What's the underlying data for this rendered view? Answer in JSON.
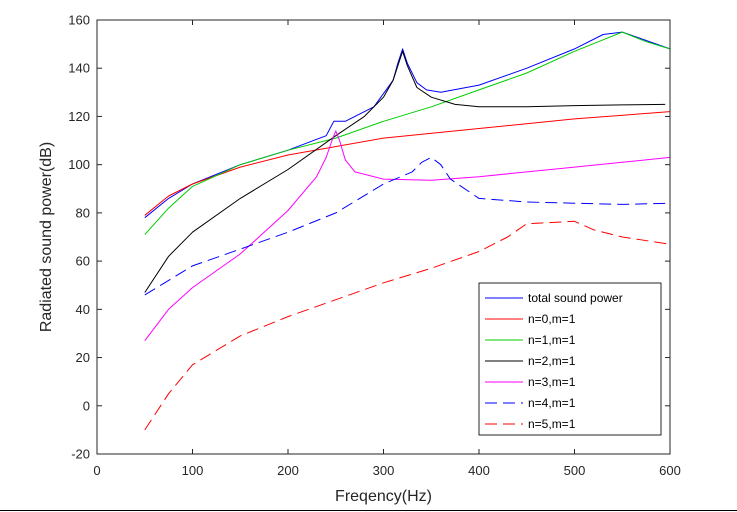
{
  "chart_data": {
    "type": "line",
    "xlabel": "Freqency(Hz)",
    "ylabel": "Radiated sound power(dB)",
    "xlim": [
      0,
      600
    ],
    "ylim": [
      -20,
      160
    ],
    "xticks": [
      "0",
      "100",
      "200",
      "300",
      "400",
      "500",
      "600"
    ],
    "yticks": [
      "-20",
      "0",
      "20",
      "40",
      "60",
      "80",
      "100",
      "120",
      "140",
      "160"
    ],
    "grid": false,
    "legend_position": "bottom-right",
    "series": [
      {
        "name": "total sound power",
        "color": "#0000ff",
        "dash": "solid",
        "points": [
          [
            50,
            78
          ],
          [
            75,
            86
          ],
          [
            100,
            92
          ],
          [
            150,
            100
          ],
          [
            200,
            106
          ],
          [
            240,
            112
          ],
          [
            248,
            118
          ],
          [
            260,
            118
          ],
          [
            290,
            124
          ],
          [
            310,
            135
          ],
          [
            315,
            142
          ],
          [
            320,
            148
          ],
          [
            325,
            142
          ],
          [
            335,
            134
          ],
          [
            345,
            131
          ],
          [
            360,
            130
          ],
          [
            400,
            133
          ],
          [
            450,
            140
          ],
          [
            500,
            148
          ],
          [
            530,
            154
          ],
          [
            550,
            155
          ],
          [
            600,
            148
          ]
        ]
      },
      {
        "name": "n=0,m=1",
        "color": "#ff0000",
        "dash": "solid",
        "points": [
          [
            50,
            79
          ],
          [
            75,
            87
          ],
          [
            100,
            92
          ],
          [
            150,
            99
          ],
          [
            200,
            104
          ],
          [
            300,
            111
          ],
          [
            400,
            115
          ],
          [
            500,
            119
          ],
          [
            600,
            122
          ]
        ]
      },
      {
        "name": "n=1,m=1",
        "color": "#00cc00",
        "dash": "solid",
        "points": [
          [
            50,
            71
          ],
          [
            75,
            82
          ],
          [
            100,
            91
          ],
          [
            150,
            100
          ],
          [
            200,
            106
          ],
          [
            250,
            111
          ],
          [
            300,
            118
          ],
          [
            350,
            124
          ],
          [
            400,
            131
          ],
          [
            450,
            138
          ],
          [
            500,
            147
          ],
          [
            525,
            151
          ],
          [
            550,
            155
          ],
          [
            575,
            151
          ],
          [
            600,
            148
          ]
        ]
      },
      {
        "name": "n=2,m=1",
        "color": "#000000",
        "dash": "solid",
        "points": [
          [
            50,
            47
          ],
          [
            75,
            62
          ],
          [
            100,
            72
          ],
          [
            150,
            86
          ],
          [
            200,
            98
          ],
          [
            250,
            112
          ],
          [
            280,
            120
          ],
          [
            300,
            128
          ],
          [
            310,
            135
          ],
          [
            315,
            141
          ],
          [
            320,
            147
          ],
          [
            325,
            141
          ],
          [
            335,
            132
          ],
          [
            350,
            128
          ],
          [
            375,
            125
          ],
          [
            400,
            124
          ],
          [
            450,
            124
          ],
          [
            500,
            124.5
          ],
          [
            550,
            124.8
          ],
          [
            595,
            125
          ]
        ]
      },
      {
        "name": "n=3,m=1",
        "color": "#ff00ff",
        "dash": "solid",
        "points": [
          [
            50,
            27
          ],
          [
            75,
            40
          ],
          [
            100,
            49
          ],
          [
            150,
            63
          ],
          [
            200,
            81
          ],
          [
            230,
            95
          ],
          [
            240,
            103
          ],
          [
            246,
            110
          ],
          [
            250,
            114
          ],
          [
            254,
            110
          ],
          [
            260,
            102
          ],
          [
            270,
            97
          ],
          [
            300,
            94
          ],
          [
            350,
            93.5
          ],
          [
            400,
            95
          ],
          [
            450,
            97
          ],
          [
            500,
            99
          ],
          [
            550,
            101
          ],
          [
            600,
            103
          ]
        ]
      },
      {
        "name": "n=4,m=1",
        "color": "#0000ff",
        "dash": "dashed",
        "points": [
          [
            50,
            46
          ],
          [
            75,
            52
          ],
          [
            100,
            58
          ],
          [
            150,
            65
          ],
          [
            200,
            72
          ],
          [
            250,
            80
          ],
          [
            300,
            92
          ],
          [
            330,
            97
          ],
          [
            340,
            101
          ],
          [
            350,
            103
          ],
          [
            360,
            100
          ],
          [
            370,
            94
          ],
          [
            400,
            86
          ],
          [
            450,
            84.5
          ],
          [
            500,
            84
          ],
          [
            550,
            83.5
          ],
          [
            600,
            84
          ]
        ]
      },
      {
        "name": "n=5,m=1",
        "color": "#ff0000",
        "dash": "dashed",
        "points": [
          [
            50,
            -10
          ],
          [
            75,
            5
          ],
          [
            100,
            17
          ],
          [
            150,
            29
          ],
          [
            200,
            37
          ],
          [
            250,
            44
          ],
          [
            300,
            51
          ],
          [
            350,
            57
          ],
          [
            400,
            64
          ],
          [
            430,
            70
          ],
          [
            450,
            75.5
          ],
          [
            500,
            76.5
          ],
          [
            520,
            73
          ],
          [
            550,
            70
          ],
          [
            600,
            67
          ]
        ]
      }
    ]
  }
}
